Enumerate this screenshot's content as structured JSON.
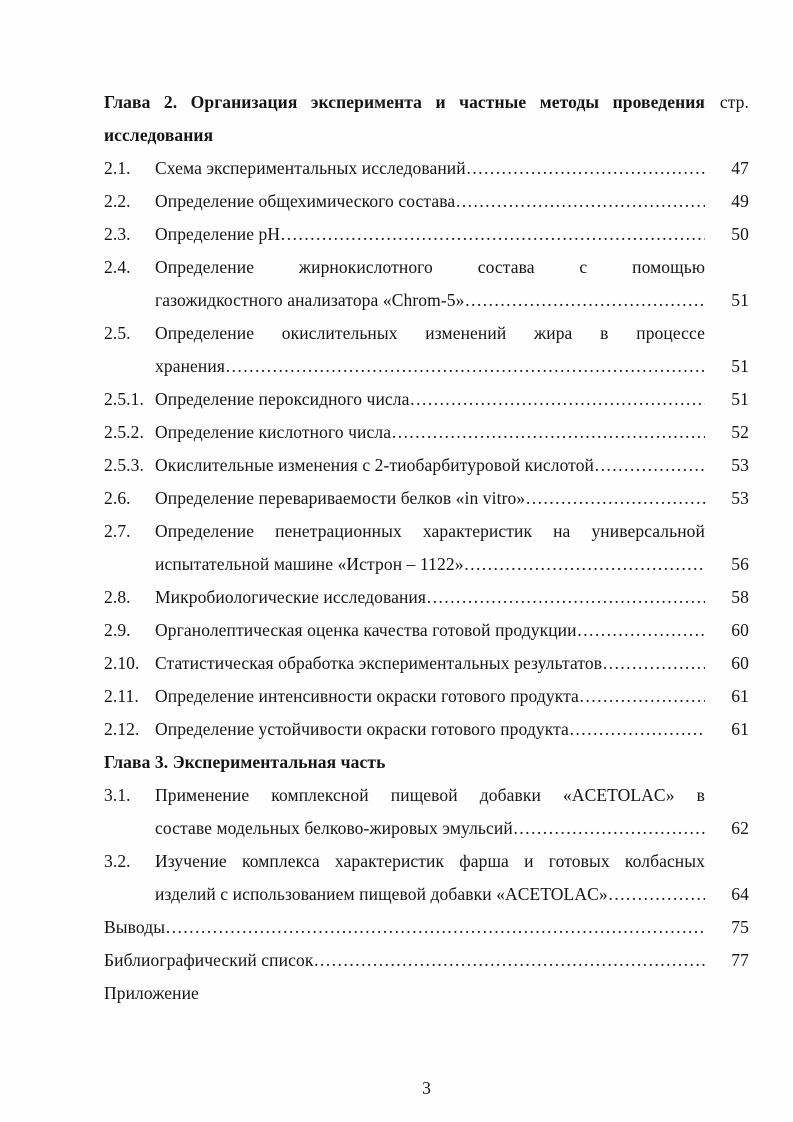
{
  "document": {
    "header": {
      "chapter_title_line1": "Глава 2. Организация эксперимента и частные методы проведения",
      "page_column_label": "стр.",
      "chapter_title_line2": "исследования"
    },
    "entries": [
      {
        "num": "2.1.",
        "text": "Схема экспериментальных исследований…………………………………………………………",
        "page": "47"
      },
      {
        "num": "2.2.",
        "text": "Определение общехимического состава…………………………………………………………..",
        "page": "49"
      },
      {
        "num": "2.3.",
        "text": "Определение pH…………………………………………………………………………………………..",
        "page": "50"
      },
      {
        "num": "2.4.",
        "text": "Определение жирнокислотного состава с помощью",
        "justify": true
      },
      {
        "indent": true,
        "text": "газожидкостного анализатора «Chrom-5»…………………………………………………………",
        "page": "51"
      },
      {
        "num": "2.5.",
        "text": "Определение окислительных изменений жира в процессе",
        "justify": true
      },
      {
        "indent": true,
        "text": "хранения……………………………………………………………………………………………………",
        "page": "51"
      },
      {
        "num": "2.5.1.",
        "text": "Определение пероксидного числа……………………………………………………………………",
        "page": "51"
      },
      {
        "num": "2.5.2.",
        "text": "Определение кислотного числа……………………………………………………………………….",
        "page": "52"
      },
      {
        "num": "2.5.3.",
        "text": "Окислительные изменения с 2-тиобарбитуровой кислотой……………………………………",
        "page": "53"
      },
      {
        "num": "2.6.",
        "text": "Определение перевариваемости белков «in vitro»……………………………………………...",
        "page": "53"
      },
      {
        "num": "2.7.",
        "text": "Определение пенетрационных характеристик на универсальной",
        "justify": true
      },
      {
        "indent": true,
        "text": "испытательной машине «Истрон – 1122»…………………………………………………………",
        "page": "56"
      },
      {
        "num": "2.8.",
        "text": "Микробиологические исследования………………………………………………………………..",
        "page": "58"
      },
      {
        "num": "2.9.",
        "text": "Органолептическая оценка качества готовой продукции…………………………………….",
        "page": "60"
      },
      {
        "num": "2.10.",
        "text": "Статистическая обработка экспериментальных результатов………………………………..",
        "page": "60"
      },
      {
        "num": "2.11.",
        "text": "Определение интенсивности окраски готового продукта…………………………………...",
        "page": "61"
      },
      {
        "num": "2.12.",
        "text": "Определение устойчивости окраски готового продукта………………………………………",
        "page": "61"
      },
      {
        "chapter": true,
        "text": "Глава 3. Экспериментальная часть"
      },
      {
        "num": "3.1.",
        "text": "Применение комплексной пищевой добавки «ACETOLAC» в",
        "justify": true
      },
      {
        "indent": true,
        "text": "составе модельных белково-жировых эмульсий………………………………………………..",
        "page": "62"
      },
      {
        "num": "3.2.",
        "text": "Изучение комплекса характеристик фарша и готовых колбасных",
        "justify": true
      },
      {
        "indent": true,
        "text": "изделий с использованием пищевой добавки «ACETOLAC»………………………………",
        "page": "64"
      },
      {
        "plain": true,
        "text": "Выводы………………………………………………………………………………………………………………….",
        "page": "75"
      },
      {
        "plain": true,
        "text": "Библиографический список……………………………………………………………………………………….",
        "page": "77"
      },
      {
        "plain": true,
        "text": "Приложение"
      }
    ],
    "footer_page_number": "3"
  }
}
